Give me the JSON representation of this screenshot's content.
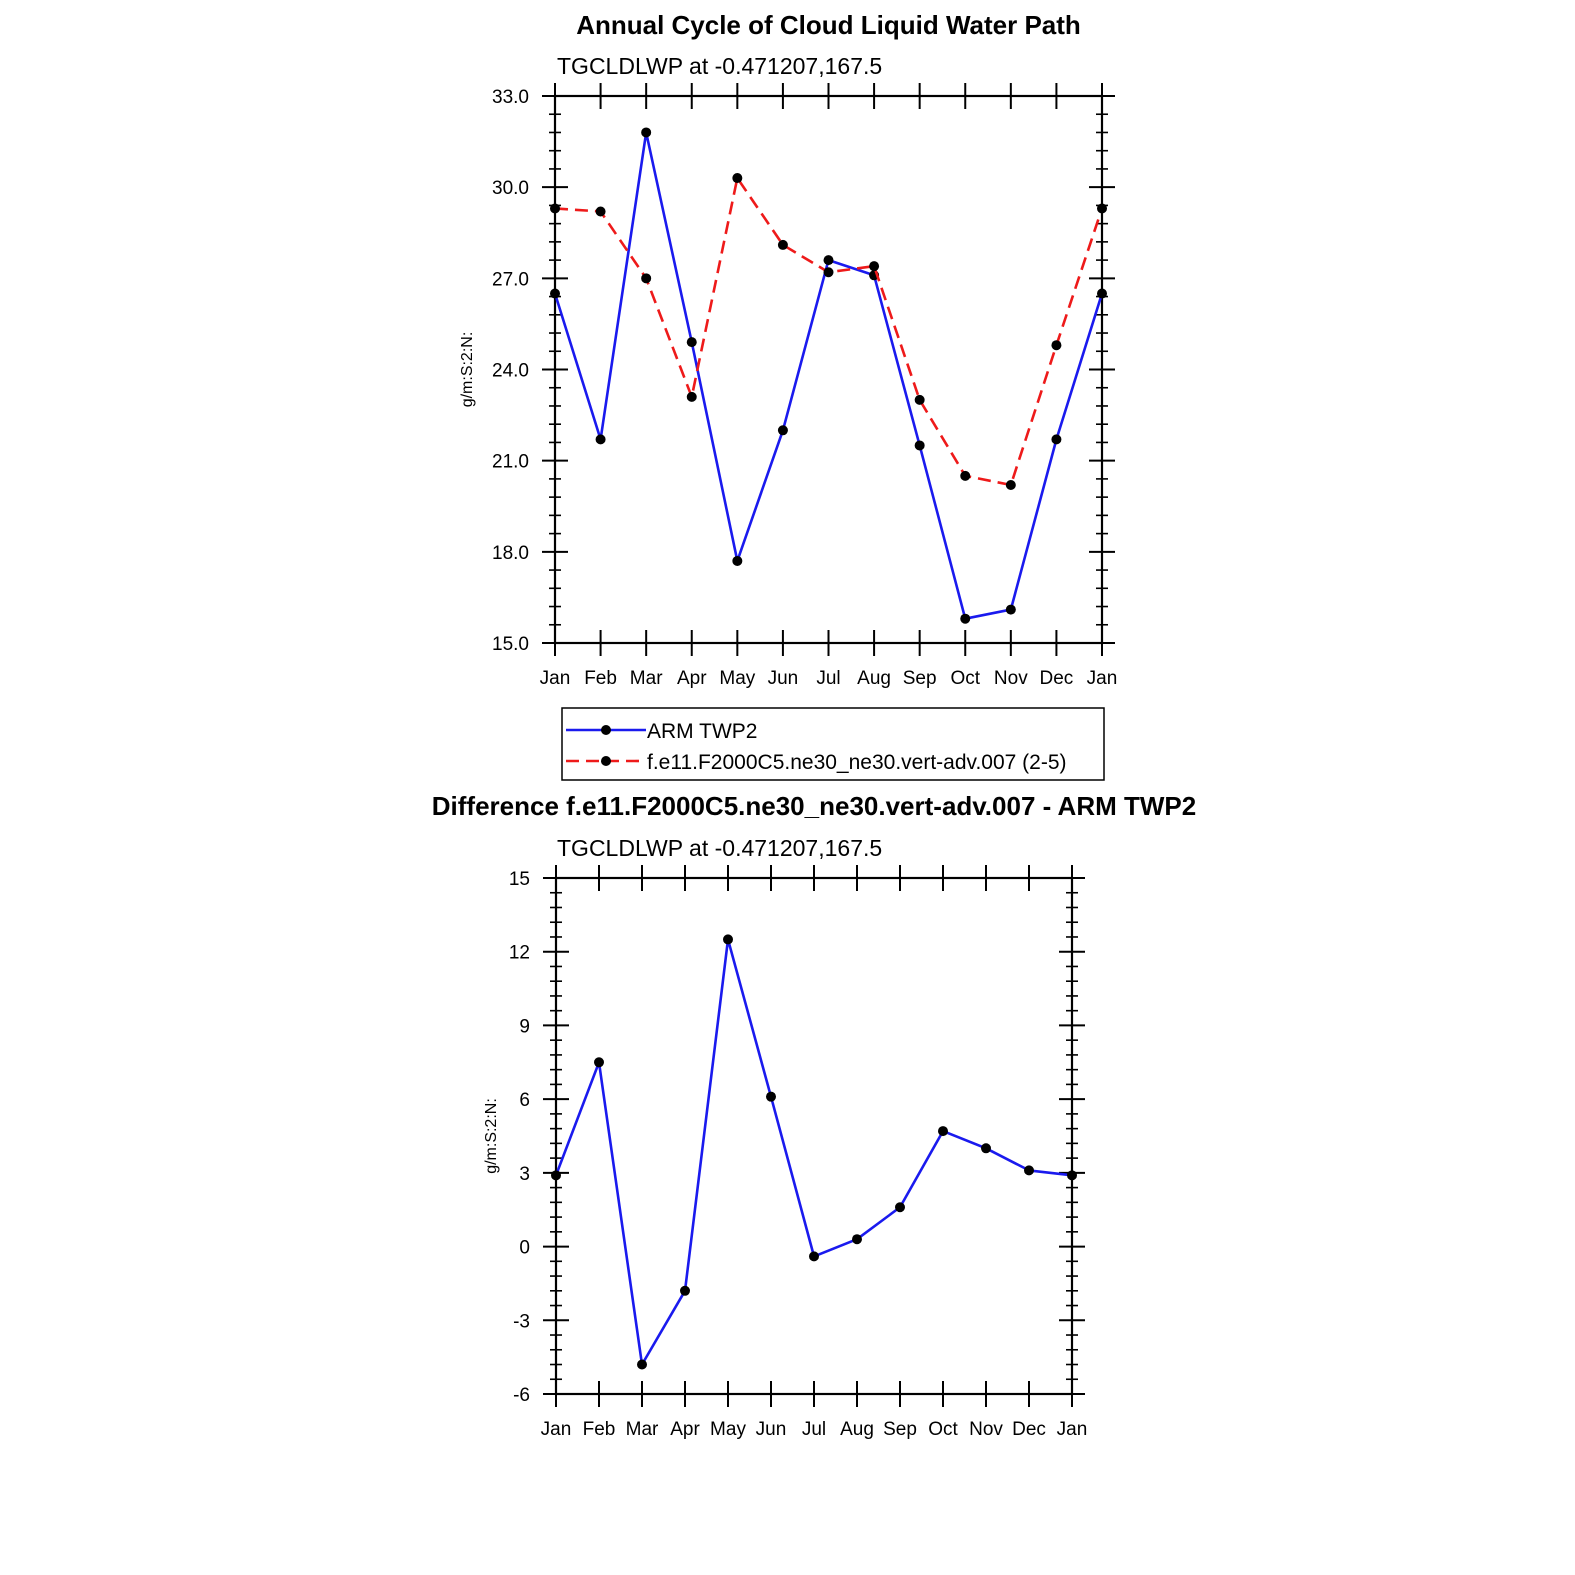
{
  "colors": {
    "obs": "#1a1aee",
    "model": "#ee1a1a",
    "marker": "#000000",
    "axis": "#000000"
  },
  "chart_data": [
    {
      "type": "line",
      "title": "Annual Cycle of Cloud Liquid Water Path",
      "subtitle": "TGCLDLWP at -0.471207,167.5",
      "xlabel": "",
      "ylabel": "g/m:S:2:N:",
      "categories": [
        "Jan",
        "Feb",
        "Mar",
        "Apr",
        "May",
        "Jun",
        "Jul",
        "Aug",
        "Sep",
        "Oct",
        "Nov",
        "Dec",
        "Jan"
      ],
      "ylim": [
        15.0,
        33.0
      ],
      "yticks": [
        "15.0",
        "18.0",
        "21.0",
        "24.0",
        "27.0",
        "30.0",
        "33.0"
      ],
      "series": [
        {
          "name": "ARM TWP2",
          "style": "solid",
          "color": "#1a1aee",
          "values": [
            26.5,
            21.7,
            31.8,
            24.9,
            17.7,
            22.0,
            27.6,
            27.1,
            21.5,
            15.8,
            16.1,
            21.7,
            26.5
          ]
        },
        {
          "name": "f.e11.F2000C5.ne30_ne30.vert-adv.007 (2-5)",
          "style": "dashed",
          "color": "#ee1a1a",
          "values": [
            29.3,
            29.2,
            27.0,
            23.1,
            30.3,
            28.1,
            27.2,
            27.4,
            23.0,
            20.5,
            20.2,
            24.8,
            29.3
          ]
        }
      ],
      "legend": "below"
    },
    {
      "type": "line",
      "title": "Difference f.e11.F2000C5.ne30_ne30.vert-adv.007 - ARM TWP2",
      "subtitle": "TGCLDLWP at -0.471207,167.5",
      "xlabel": "",
      "ylabel": "g/m:S:2:N:",
      "categories": [
        "Jan",
        "Feb",
        "Mar",
        "Apr",
        "May",
        "Jun",
        "Jul",
        "Aug",
        "Sep",
        "Oct",
        "Nov",
        "Dec",
        "Jan"
      ],
      "ylim": [
        -6,
        15
      ],
      "yticks": [
        "-6",
        "-3",
        "0",
        "3",
        "6",
        "9",
        "12",
        "15"
      ],
      "series": [
        {
          "name": "Difference",
          "style": "solid",
          "color": "#1a1aee",
          "values": [
            2.9,
            7.5,
            -4.8,
            -1.8,
            12.5,
            6.1,
            -0.4,
            0.3,
            1.6,
            4.7,
            4.0,
            3.1,
            2.9
          ]
        }
      ]
    }
  ]
}
